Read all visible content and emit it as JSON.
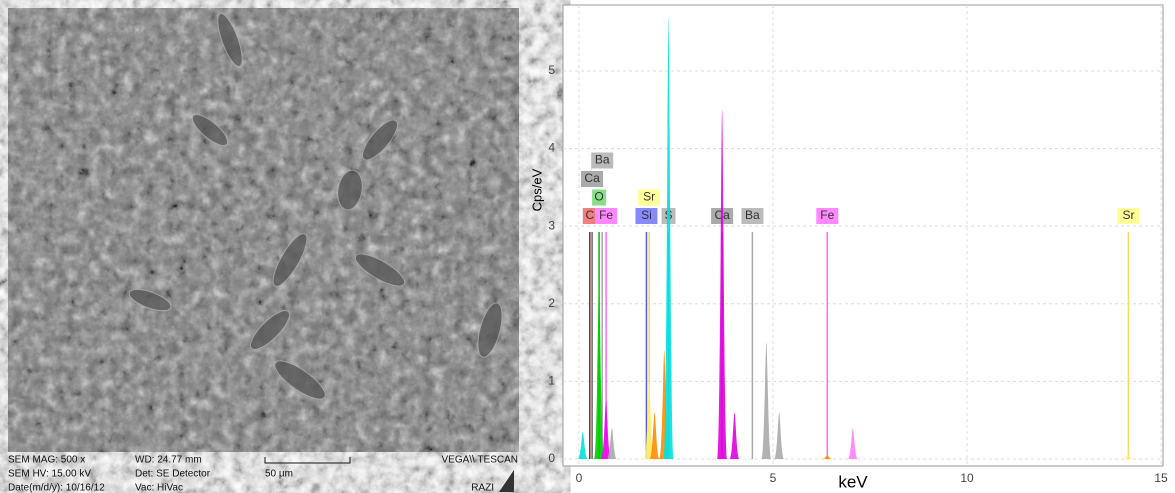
{
  "sem": {
    "info": [
      [
        "SEM MAG: 500 x",
        "WD: 24.77 mm",
        "VEGA\\\\ TESCAN"
      ],
      [
        "SEM HV: 15.00 kV",
        "Det: SE Detector",
        "50 µm"
      ],
      [
        "Date(m/d/y): 10/16/12",
        "Vac: HiVac",
        "RAZI"
      ]
    ]
  },
  "chart_data": {
    "type": "spectrum",
    "xlabel": "keV",
    "ylabel": "Cps/eV",
    "xlim": [
      -0.41,
      15.05
    ],
    "xticks": [
      0,
      5,
      10,
      15
    ],
    "ylim": [
      -0.09,
      5.85
    ],
    "yticks": [
      0,
      1,
      2,
      3,
      4,
      5
    ],
    "grid": true,
    "markers": [
      {
        "label": "C",
        "x": 0.28,
        "color": "#f08080",
        "line": "#7a2a2a"
      },
      {
        "label": "Fe",
        "x": 0.7,
        "color": "#ff88ff",
        "line": "#ff66ff"
      },
      {
        "label": "O",
        "x": 0.52,
        "color": "#88dd88",
        "line": "#00bb00"
      },
      {
        "label": "Ca",
        "x": 0.34,
        "color": "#aaaaaa",
        "line": "#666666"
      },
      {
        "label": "Ba",
        "x": 0.6,
        "color": "#bbbbbb",
        "line": "#aaaaaa"
      },
      {
        "label": "Si",
        "x": 1.74,
        "color": "#8888ff",
        "line": "#5555dd"
      },
      {
        "label": "Sr",
        "x": 1.81,
        "color": "#ffff99",
        "line": "#eedd55"
      },
      {
        "label": "S",
        "x": 2.31,
        "color": "#bbbbbb",
        "line": "#999999"
      },
      {
        "label": "Ca",
        "x": 3.69,
        "color": "#aaaaaa",
        "line": "#777777"
      },
      {
        "label": "Ba",
        "x": 4.47,
        "color": "#bbbbbb",
        "line": "#aaaaaa"
      },
      {
        "label": "Fe",
        "x": 6.4,
        "color": "#ff88ff",
        "line": "#ff66ff"
      },
      {
        "label": "Sr",
        "x": 14.16,
        "color": "#ffff99",
        "line": "#eedd55"
      }
    ],
    "peaks": [
      {
        "x": 0.1,
        "y": 0.35,
        "color": "#00e0e0"
      },
      {
        "x": 0.52,
        "y": 2.3,
        "color": "#00cc00"
      },
      {
        "x": 0.7,
        "y": 0.75,
        "color": "#ee00ee"
      },
      {
        "x": 0.85,
        "y": 0.4,
        "color": "#aaaaaa"
      },
      {
        "x": 1.81,
        "y": 1.0,
        "color": "#ffee66"
      },
      {
        "x": 1.95,
        "y": 0.6,
        "color": "#ff8c00"
      },
      {
        "x": 2.2,
        "y": 1.4,
        "color": "#ff8c00"
      },
      {
        "x": 2.31,
        "y": 5.69,
        "color": "#00e0e0"
      },
      {
        "x": 3.69,
        "y": 4.5,
        "color": "#e000e0"
      },
      {
        "x": 4.01,
        "y": 0.6,
        "color": "#e000e0"
      },
      {
        "x": 4.83,
        "y": 1.5,
        "color": "#aaaaaa"
      },
      {
        "x": 5.16,
        "y": 0.6,
        "color": "#aaaaaa"
      },
      {
        "x": 6.4,
        "y": 0.05,
        "color": "#ff8c00"
      },
      {
        "x": 7.06,
        "y": 0.4,
        "color": "#ff80ff"
      },
      {
        "x": 14.16,
        "y": 0.05,
        "color": "#ffee66"
      }
    ]
  }
}
